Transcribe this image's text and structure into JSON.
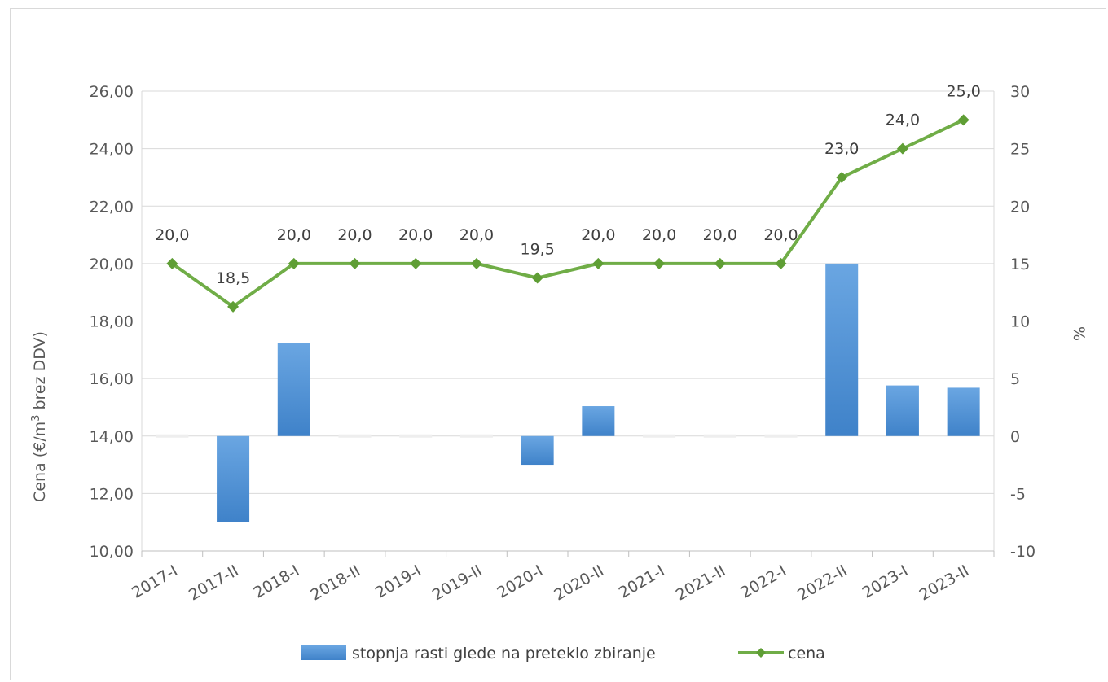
{
  "chart_data": {
    "type": "bar+line",
    "categories": [
      "2017-I",
      "2017-II",
      "2018-I",
      "2018-II",
      "2019-I",
      "2019-II",
      "2020-I",
      "2020-II",
      "2021-I",
      "2021-II",
      "2022-I",
      "2022-II",
      "2023-I",
      "2023-II"
    ],
    "series": [
      {
        "name": "stopnja rasti glede na preteklo zbiranje",
        "type": "bar",
        "axis": "right",
        "color": "#4a8fd6",
        "values": [
          0,
          -7.5,
          8.1,
          0,
          0,
          0,
          -2.5,
          2.6,
          0,
          0,
          0,
          15.0,
          4.4,
          4.2
        ]
      },
      {
        "name": "cena",
        "type": "line",
        "axis": "left",
        "color": "#70ad47",
        "marker": "diamond",
        "values": [
          20.0,
          18.5,
          20.0,
          20.0,
          20.0,
          20.0,
          19.5,
          20.0,
          20.0,
          20.0,
          20.0,
          23.0,
          24.0,
          25.0
        ],
        "data_labels": [
          "20,0",
          "18,5",
          "20,0",
          "20,0",
          "20,0",
          "20,0",
          "19,5",
          "20,0",
          "20,0",
          "20,0",
          "20,0",
          "23,0",
          "24,0",
          "25,0"
        ]
      }
    ],
    "y_left": {
      "label": "Cena (€/m³ brez DDV)",
      "ylim": [
        10,
        26
      ],
      "ticks": [
        10,
        12,
        14,
        16,
        18,
        20,
        22,
        24,
        26
      ],
      "tick_labels": [
        "10,00",
        "12,00",
        "14,00",
        "16,00",
        "18,00",
        "20,00",
        "22,00",
        "24,00",
        "26,00"
      ]
    },
    "y_right": {
      "label": "%",
      "ylim": [
        -10,
        30
      ],
      "ticks": [
        -10,
        -5,
        0,
        5,
        10,
        15,
        20,
        25,
        30
      ],
      "tick_labels": [
        "-10",
        "-5",
        "0",
        "5",
        "10",
        "15",
        "20",
        "25",
        "30"
      ]
    },
    "grid": true,
    "legend": "bottom"
  }
}
